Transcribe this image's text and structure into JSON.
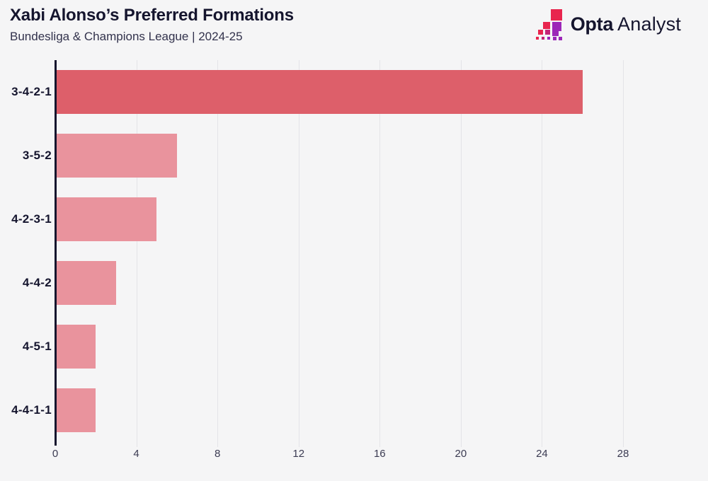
{
  "header": {
    "title": "Xabi Alonso’s Preferred Formations",
    "subtitle": "Bundesliga & Champions League | 2024-25"
  },
  "logo": {
    "brand_bold": "Opta",
    "brand_light": "Analyst"
  },
  "colors": {
    "background": "#f5f5f6",
    "text_dark": "#15152e",
    "text_sub": "#32324c",
    "tick_text": "#3b3b52",
    "grid": "#e4e4e8",
    "axis": "#15152e",
    "bar_primary": "#dd5f6a",
    "bar_secondary": "#e9939d",
    "logo_red": "#e8254e",
    "logo_magenta": "#c32577",
    "logo_purple": "#9c27b8"
  },
  "chart_data": {
    "type": "bar",
    "orientation": "horizontal",
    "title": "Xabi Alonso’s Preferred Formations",
    "subtitle": "Bundesliga & Champions League | 2024-25",
    "categories": [
      "3-4-2-1",
      "3-5-2",
      "4-2-3-1",
      "4-4-2",
      "4-5-1",
      "4-4-1-1"
    ],
    "values": [
      26,
      6,
      5,
      3,
      2,
      2
    ],
    "highlight_category": "3-4-2-1",
    "xlabel": "",
    "ylabel": "",
    "xlim": [
      0,
      28
    ],
    "xticks": [
      0,
      4,
      8,
      12,
      16,
      20,
      24,
      28
    ],
    "grid": "vertical",
    "legend": "none"
  }
}
